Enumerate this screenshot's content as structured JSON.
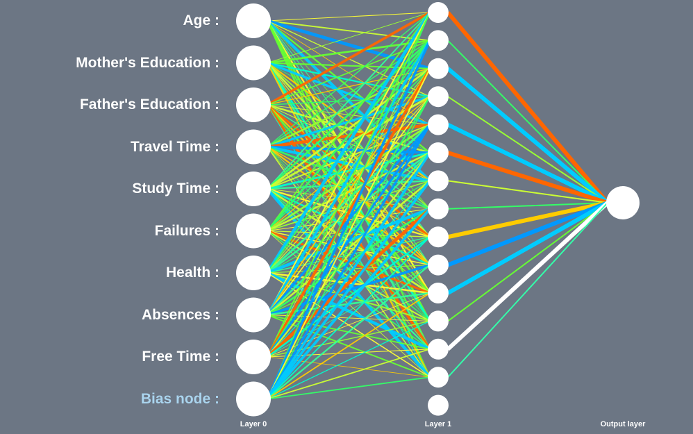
{
  "inputs": [
    {
      "label": "Age :",
      "bias": false
    },
    {
      "label": "Mother's Education :",
      "bias": false
    },
    {
      "label": "Father's Education :",
      "bias": false
    },
    {
      "label": "Travel Time :",
      "bias": false
    },
    {
      "label": "Study Time :",
      "bias": false
    },
    {
      "label": "Failures :",
      "bias": false
    },
    {
      "label": "Health :",
      "bias": false
    },
    {
      "label": "Absences :",
      "bias": false
    },
    {
      "label": "Free Time :",
      "bias": false
    },
    {
      "label": "Bias node :",
      "bias": true
    }
  ],
  "layers": {
    "layer0": "Layer 0",
    "layer1": "Layer 1",
    "output": "Output layer"
  },
  "hidden_node_count": 15,
  "colors": {
    "background": "#6c7684",
    "node": "#ffffff",
    "bias_label": "#aad4ee",
    "edge_palette": [
      "#00ffff",
      "#00ccff",
      "#0099ff",
      "#33ff66",
      "#66ff33",
      "#99ff33",
      "#ccff33",
      "#ffff33",
      "#ffcc00",
      "#ff6600"
    ]
  },
  "output_connections": [
    {
      "from_hidden": 1,
      "color": "#ff6600",
      "strong": true
    },
    {
      "from_hidden": 2,
      "color": "#33ff66",
      "strong": false
    },
    {
      "from_hidden": 3,
      "color": "#00ccff",
      "strong": true
    },
    {
      "from_hidden": 4,
      "color": "#99ff33",
      "strong": false
    },
    {
      "from_hidden": 5,
      "color": "#00ccff",
      "strong": true
    },
    {
      "from_hidden": 6,
      "color": "#ff6600",
      "strong": true
    },
    {
      "from_hidden": 7,
      "color": "#ccff33",
      "strong": false
    },
    {
      "from_hidden": 8,
      "color": "#33ff66",
      "strong": false
    },
    {
      "from_hidden": 9,
      "color": "#ffcc00",
      "strong": true
    },
    {
      "from_hidden": 10,
      "color": "#0099ff",
      "strong": true
    },
    {
      "from_hidden": 11,
      "color": "#00ccff",
      "strong": true
    },
    {
      "from_hidden": 12,
      "color": "#66ff33",
      "strong": false
    },
    {
      "from_hidden": 13,
      "color": "#ffffff",
      "strong": true
    },
    {
      "from_hidden": 14,
      "color": "#33ffaa",
      "strong": false
    }
  ]
}
